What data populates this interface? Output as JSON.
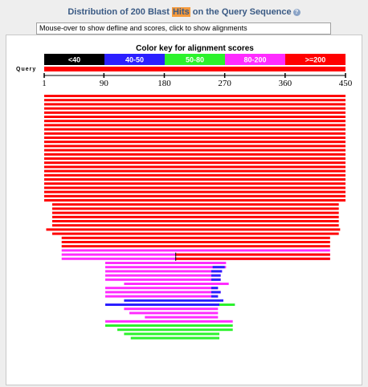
{
  "header": {
    "title_before": "Distribution of 200 Blast ",
    "title_highlight": "Hits",
    "title_after": " on the Query Sequence",
    "help_icon": "question-circle-icon"
  },
  "info_box": {
    "text": "Mouse-over to show defline and scores, click to show alignments"
  },
  "chart_data": {
    "type": "bar",
    "title": "Color key for alignment scores",
    "query_label": "Query",
    "query_length": 450,
    "ticks": [
      1,
      90,
      180,
      270,
      360,
      450
    ],
    "color_key": [
      {
        "label": "<40",
        "color": "#000000"
      },
      {
        "label": "40-50",
        "color": "#2b1fff"
      },
      {
        "label": "50-80",
        "color": "#2cf22c"
      },
      {
        "label": "80-200",
        "color": "#ff2cff"
      },
      {
        "label": ">=200",
        "color": "#ff0000"
      }
    ],
    "hits": [
      {
        "start": 1,
        "end": 450,
        "category": ">=200"
      },
      {
        "start": 1,
        "end": 450,
        "category": ">=200"
      },
      {
        "start": 1,
        "end": 450,
        "category": ">=200"
      },
      {
        "start": 1,
        "end": 450,
        "category": ">=200"
      },
      {
        "start": 1,
        "end": 450,
        "category": ">=200"
      },
      {
        "start": 1,
        "end": 450,
        "category": ">=200"
      },
      {
        "start": 1,
        "end": 450,
        "category": ">=200"
      },
      {
        "start": 1,
        "end": 450,
        "category": ">=200"
      },
      {
        "start": 1,
        "end": 450,
        "category": ">=200"
      },
      {
        "start": 1,
        "end": 450,
        "category": ">=200"
      },
      {
        "start": 1,
        "end": 450,
        "category": ">=200"
      },
      {
        "start": 1,
        "end": 450,
        "category": ">=200"
      },
      {
        "start": 1,
        "end": 450,
        "category": ">=200"
      },
      {
        "start": 1,
        "end": 450,
        "category": ">=200"
      },
      {
        "start": 1,
        "end": 450,
        "category": ">=200"
      },
      {
        "start": 1,
        "end": 450,
        "category": ">=200"
      },
      {
        "start": 1,
        "end": 450,
        "category": ">=200"
      },
      {
        "start": 1,
        "end": 450,
        "category": ">=200"
      },
      {
        "start": 1,
        "end": 450,
        "category": ">=200"
      },
      {
        "start": 1,
        "end": 450,
        "category": ">=200"
      },
      {
        "start": 1,
        "end": 450,
        "category": ">=200"
      },
      {
        "start": 1,
        "end": 450,
        "category": ">=200"
      },
      {
        "start": 1,
        "end": 450,
        "category": ">=200"
      },
      {
        "start": 1,
        "end": 450,
        "category": ">=200"
      },
      {
        "start": 1,
        "end": 450,
        "category": ">=200"
      },
      {
        "start": 1,
        "end": 450,
        "category": ">=200"
      },
      {
        "start": 13,
        "end": 440,
        "category": ">=200"
      },
      {
        "start": 13,
        "end": 440,
        "category": ">=200"
      },
      {
        "start": 13,
        "end": 440,
        "category": ">=200"
      },
      {
        "start": 13,
        "end": 440,
        "category": ">=200"
      },
      {
        "start": 13,
        "end": 440,
        "category": ">=200"
      },
      {
        "start": 13,
        "end": 440,
        "category": ">=200"
      },
      {
        "start": 4,
        "end": 442,
        "category": ">=200"
      },
      {
        "start": 13,
        "end": 440,
        "category": ">=200"
      },
      {
        "start": 27,
        "end": 427,
        "category": ">=200"
      },
      {
        "start": 27,
        "end": 427,
        "category": ">=200"
      },
      {
        "start": 27,
        "end": 427,
        "category": ">=200"
      },
      {
        "start": 27,
        "end": 427,
        "category": "80-200"
      },
      {
        "start": 27,
        "end": 427,
        "category": "80-200",
        "split": 197,
        "split_category": ">=200"
      },
      {
        "start": 27,
        "end": 427,
        "category": "80-200",
        "split": 197,
        "split_category": ">=200"
      },
      {
        "start": 92,
        "end": 272,
        "category": "80-200"
      },
      {
        "start": 92,
        "end": 272,
        "category": "80-200",
        "tail": [
          [
            252,
            270,
            "40-50"
          ]
        ]
      },
      {
        "start": 92,
        "end": 266,
        "category": "80-200",
        "tail": [
          [
            250,
            266,
            "40-50"
          ]
        ]
      },
      {
        "start": 92,
        "end": 264,
        "category": "80-200",
        "tail": [
          [
            250,
            264,
            "40-50"
          ]
        ]
      },
      {
        "start": 92,
        "end": 264,
        "category": "80-200",
        "tail": [
          [
            250,
            264,
            "40-50"
          ]
        ]
      },
      {
        "start": 120,
        "end": 276,
        "category": "80-200"
      },
      {
        "start": 92,
        "end": 260,
        "category": "80-200",
        "tail": [
          [
            250,
            260,
            "40-50"
          ]
        ]
      },
      {
        "start": 92,
        "end": 264,
        "category": "80-200",
        "tail": [
          [
            250,
            264,
            "40-50"
          ]
        ]
      },
      {
        "start": 92,
        "end": 260,
        "category": "80-200",
        "tail": [
          [
            250,
            260,
            "40-50"
          ]
        ]
      },
      {
        "start": 120,
        "end": 268,
        "category": "40-50"
      },
      {
        "start": 92,
        "end": 285,
        "category": "40-50",
        "tail": [
          [
            262,
            285,
            "50-80"
          ]
        ]
      },
      {
        "start": 120,
        "end": 260,
        "category": "80-200"
      },
      {
        "start": 128,
        "end": 260,
        "category": "80-200"
      },
      {
        "start": 151,
        "end": 260,
        "category": "80-200"
      },
      {
        "start": 92,
        "end": 282,
        "category": "80-200"
      },
      {
        "start": 92,
        "end": 282,
        "category": "50-80"
      },
      {
        "start": 110,
        "end": 282,
        "category": "50-80"
      },
      {
        "start": 120,
        "end": 262,
        "category": "50-80"
      },
      {
        "start": 130,
        "end": 262,
        "category": "50-80"
      }
    ]
  }
}
